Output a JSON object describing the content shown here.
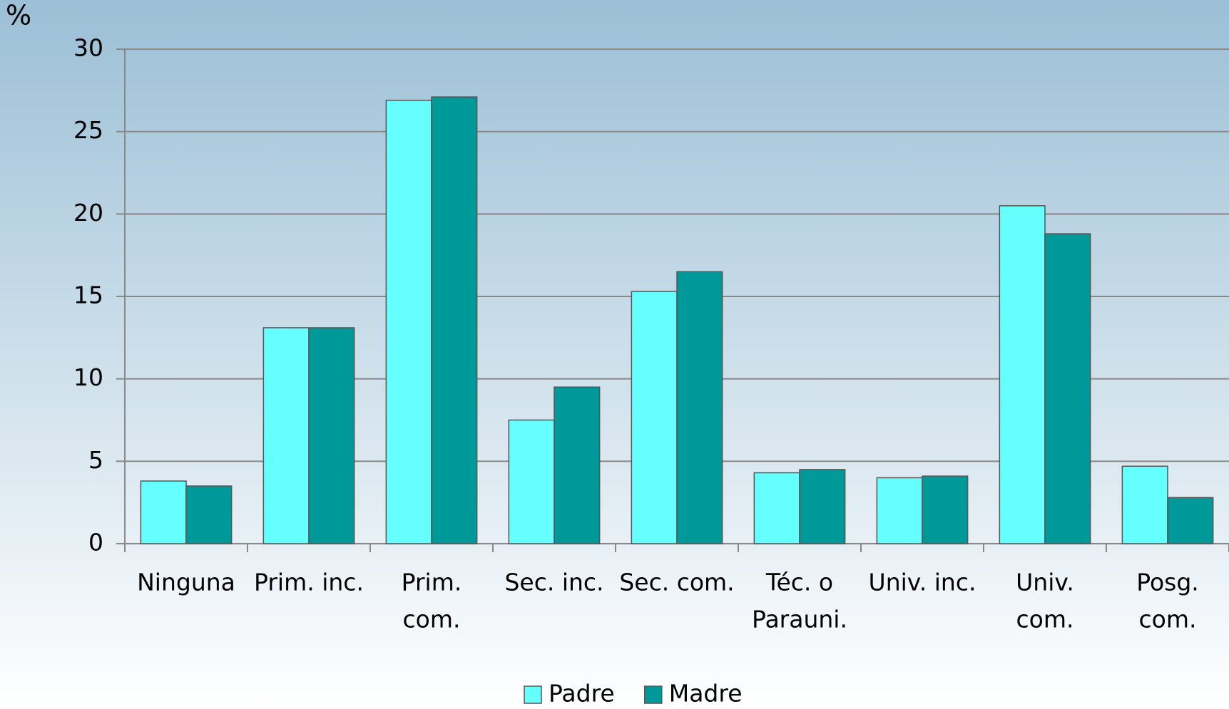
{
  "chart_data": {
    "type": "bar",
    "y_label": "%",
    "categories": [
      "Ninguna",
      "Prim. inc.",
      [
        "Prim.",
        "com."
      ],
      "Sec. inc.",
      "Sec. com.",
      [
        "Téc. o",
        "Parauni."
      ],
      "Univ. inc.",
      [
        "Univ.",
        "com."
      ],
      [
        "Posg.",
        "com."
      ]
    ],
    "series": [
      {
        "name": "Padre",
        "color": "#66ffff",
        "values": [
          3.8,
          13.1,
          26.9,
          7.5,
          15.3,
          4.3,
          4.0,
          20.5,
          4.7
        ]
      },
      {
        "name": "Madre",
        "color": "#009999",
        "values": [
          3.5,
          13.1,
          27.1,
          9.5,
          16.5,
          4.5,
          4.1,
          18.8,
          2.8
        ]
      }
    ],
    "ylim": [
      0,
      30
    ],
    "yticks": [
      0,
      5,
      10,
      15,
      20,
      25,
      30
    ],
    "grid": true,
    "legend": "bottom"
  }
}
